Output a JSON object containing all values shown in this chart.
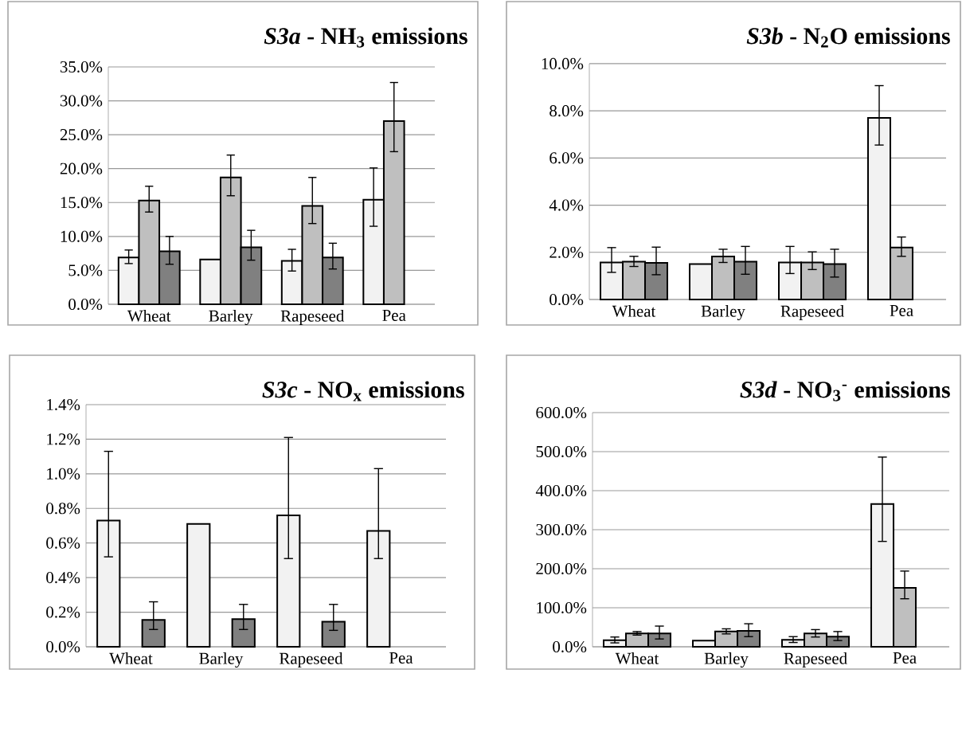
{
  "chart_data": [
    {
      "type": "bar",
      "title": "*S3a* - NH$_{3}$ emissions",
      "categories": [
        "Wheat",
        "Barley",
        "Rapeseed",
        "Pea"
      ],
      "grid": "y",
      "ylim": [
        0,
        35
      ],
      "yticks": [
        {
          "value": 0,
          "label": "0.0%"
        },
        {
          "value": 5,
          "label": "5.0%"
        },
        {
          "value": 10,
          "label": "10.0%"
        },
        {
          "value": 15,
          "label": "15.0%"
        },
        {
          "value": 20,
          "label": "20.0%"
        },
        {
          "value": 25,
          "label": "25.0%"
        },
        {
          "value": 30,
          "label": "30.0%"
        },
        {
          "value": 35,
          "label": "35.0%"
        }
      ],
      "series": [
        {
          "color": "#f2f2f2",
          "values": [
            6.9,
            6.6,
            6.4,
            15.4
          ],
          "errors": [
            [
              6.0,
              8.0
            ],
            null,
            [
              4.9,
              8.1
            ],
            [
              11.5,
              20.1
            ]
          ]
        },
        {
          "color": "#bfbfbf",
          "values": [
            15.3,
            18.7,
            14.5,
            27.0
          ],
          "errors": [
            [
              13.6,
              17.4
            ],
            [
              16.0,
              22.0
            ],
            [
              11.9,
              18.7
            ],
            [
              22.5,
              32.7
            ]
          ]
        },
        {
          "color": "#808080",
          "values": [
            7.8,
            8.4,
            6.9,
            null
          ],
          "errors": [
            [
              5.9,
              10.0
            ],
            [
              6.5,
              10.9
            ],
            [
              5.2,
              9.0
            ],
            null
          ]
        }
      ]
    },
    {
      "type": "bar",
      "title": "*S3b* - N$_{2}$O emissions",
      "categories": [
        "Wheat",
        "Barley",
        "Rapeseed",
        "Pea"
      ],
      "grid": "y",
      "ylim": [
        0,
        10
      ],
      "yticks": [
        {
          "value": 0,
          "label": "0.0%"
        },
        {
          "value": 2,
          "label": "2.0%"
        },
        {
          "value": 4,
          "label": "4.0%"
        },
        {
          "value": 6,
          "label": "6.0%"
        },
        {
          "value": 8,
          "label": "8.0%"
        },
        {
          "value": 10,
          "label": "10.0%"
        }
      ],
      "series": [
        {
          "color": "#f2f2f2",
          "values": [
            1.57,
            1.5,
            1.57,
            7.7
          ],
          "errors": [
            [
              1.15,
              2.2
            ],
            null,
            [
              1.1,
              2.25
            ],
            [
              6.55,
              9.07
            ]
          ]
        },
        {
          "color": "#bfbfbf",
          "values": [
            1.6,
            1.82,
            1.57,
            2.2
          ],
          "errors": [
            [
              1.4,
              1.83
            ],
            [
              1.57,
              2.13
            ],
            [
              1.27,
              2.02
            ],
            [
              1.83,
              2.65
            ]
          ]
        },
        {
          "color": "#808080",
          "values": [
            1.55,
            1.6,
            1.5,
            null
          ],
          "errors": [
            [
              1.05,
              2.22
            ],
            [
              1.07,
              2.25
            ],
            [
              0.95,
              2.13
            ],
            null
          ]
        }
      ]
    },
    {
      "type": "bar",
      "title": "*S3c* - NO$_{x}$ emissions",
      "categories": [
        "Wheat",
        "Barley",
        "Rapeseed",
        "Pea"
      ],
      "grid": "y",
      "ylim": [
        0,
        1.4
      ],
      "yticks": [
        {
          "value": 0,
          "label": "0.0%"
        },
        {
          "value": 0.2,
          "label": "0.2%"
        },
        {
          "value": 0.4,
          "label": "0.4%"
        },
        {
          "value": 0.6,
          "label": "0.6%"
        },
        {
          "value": 0.8,
          "label": "0.8%"
        },
        {
          "value": 1.0,
          "label": "1.0%"
        },
        {
          "value": 1.2,
          "label": "1.2%"
        },
        {
          "value": 1.4,
          "label": "1.4%"
        }
      ],
      "series": [
        {
          "color": "#f2f2f2",
          "values": [
            0.73,
            0.71,
            0.76,
            0.67
          ],
          "errors": [
            [
              0.52,
              1.13
            ],
            null,
            [
              0.51,
              1.21
            ],
            [
              0.51,
              1.03
            ]
          ]
        },
        {
          "color": "#bfbfbf",
          "values": [
            null,
            null,
            null,
            null
          ],
          "errors": [
            null,
            null,
            null,
            null
          ]
        },
        {
          "color": "#808080",
          "values": [
            0.155,
            0.16,
            0.145,
            null
          ],
          "errors": [
            [
              0.1,
              0.26
            ],
            [
              0.1,
              0.245
            ],
            [
              0.095,
              0.245
            ],
            null
          ]
        }
      ]
    },
    {
      "type": "bar",
      "title": "*S3d* - NO$_{3}$$^{-}$ emissions",
      "categories": [
        "Wheat",
        "Barley",
        "Rapeseed",
        "Pea"
      ],
      "grid": "y",
      "ylim": [
        0,
        600
      ],
      "yticks": [
        {
          "value": 0,
          "label": "0.0%"
        },
        {
          "value": 100,
          "label": "100.0%"
        },
        {
          "value": 200,
          "label": "200.0%"
        },
        {
          "value": 300,
          "label": "300.0%"
        },
        {
          "value": 400,
          "label": "400.0%"
        },
        {
          "value": 500,
          "label": "500.0%"
        },
        {
          "value": 600,
          "label": "600.0%"
        }
      ],
      "series": [
        {
          "color": "#f2f2f2",
          "values": [
            17,
            16,
            18,
            366
          ],
          "errors": [
            [
              10,
              25
            ],
            null,
            [
              11,
              26
            ],
            [
              270,
              486
            ]
          ]
        },
        {
          "color": "#bfbfbf",
          "values": [
            34,
            39,
            34,
            151
          ],
          "errors": [
            [
              30,
              39
            ],
            [
              33,
              46
            ],
            [
              25,
              44
            ],
            [
              123,
              194
            ]
          ]
        },
        {
          "color": "#808080",
          "values": [
            34,
            41,
            26,
            null
          ],
          "errors": [
            [
              20,
              53
            ],
            [
              26,
              59
            ],
            [
              16,
              39
            ],
            null
          ]
        }
      ]
    }
  ]
}
